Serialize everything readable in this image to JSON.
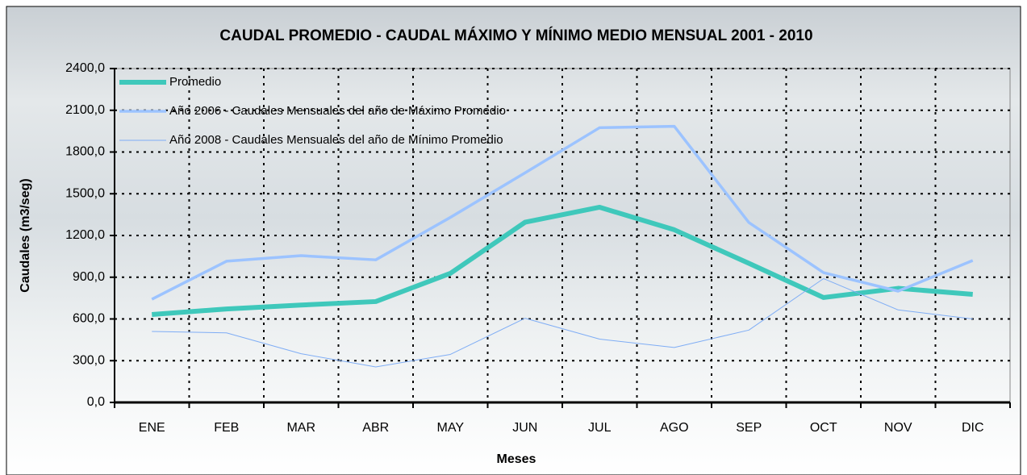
{
  "chart_data": {
    "type": "line",
    "title": "CAUDAL PROMEDIO - CAUDAL MÁXIMO Y MÍNIMO MEDIO MENSUAL 2001 - 2010",
    "x_label": "Meses",
    "y_label": "Caudales (m3/seg)",
    "categories": [
      "ENE",
      "FEB",
      "MAR",
      "ABR",
      "MAY",
      "JUN",
      "JUL",
      "AGO",
      "SEP",
      "OCT",
      "NOV",
      "DIC"
    ],
    "series": [
      {
        "name": "Promedio",
        "color": "#3fc8bb",
        "values": [
          632,
          672,
          700,
          725,
          928,
          1295,
          1403,
          1241,
          1000,
          754,
          820,
          777
        ]
      },
      {
        "name": "Año 2006 - Caudales Mensuales del año de Máximo Promedio",
        "color": "#9cc3ff",
        "values": [
          742,
          1015,
          1055,
          1025,
          1330,
          1650,
          1975,
          1985,
          1293,
          933,
          800,
          1020
        ]
      },
      {
        "name": "Año 2008 - Caudales Mensuales del año de Mínimo Promedio",
        "color": "#7fadf5",
        "values": [
          510,
          500,
          350,
          255,
          345,
          605,
          455,
          395,
          520,
          890,
          665,
          600
        ]
      }
    ],
    "ylim": [
      0,
      2400
    ],
    "yticks": [
      {
        "value": 0,
        "label": "0,0"
      },
      {
        "value": 300,
        "label": "300,0"
      },
      {
        "value": 600,
        "label": "600,0"
      },
      {
        "value": 900,
        "label": "900,0"
      },
      {
        "value": 1200,
        "label": "1200,0"
      },
      {
        "value": 1500,
        "label": "1500,0"
      },
      {
        "value": 1800,
        "label": "1800,0"
      },
      {
        "value": 2100,
        "label": "2100,0"
      },
      {
        "value": 2400,
        "label": "2400,0"
      }
    ],
    "grid": true,
    "legend": "top-left"
  }
}
